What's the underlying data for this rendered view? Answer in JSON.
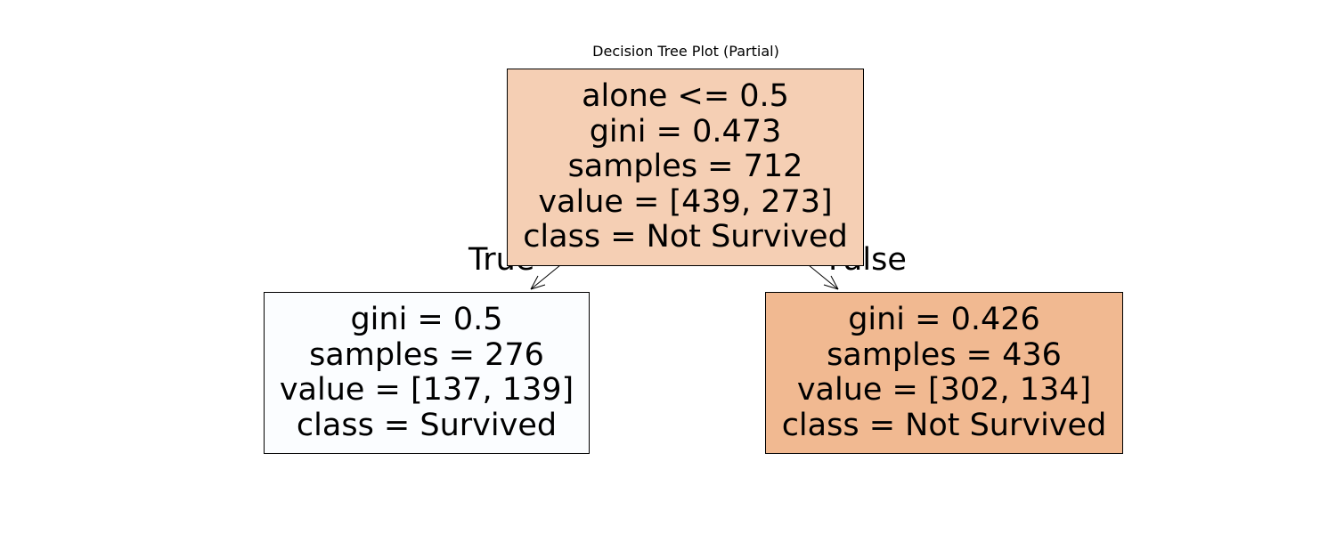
{
  "title": "Decision Tree Plot (Partial)",
  "colors": {
    "background": "#ffffff",
    "text": "#000000",
    "border": "#000000",
    "root_fill": "#f5cfb4",
    "left_fill": "#fbfdff",
    "right_fill": "#f1b991"
  },
  "nodes": {
    "root": {
      "split": "alone <= 0.5",
      "gini": "gini = 0.473",
      "samples": "samples = 712",
      "value": "value = [439, 273]",
      "class": "class = Not Survived"
    },
    "left": {
      "gini": "gini = 0.5",
      "samples": "samples = 276",
      "value": "value = [137, 139]",
      "class": "class = Survived"
    },
    "right": {
      "gini": "gini = 0.426",
      "samples": "samples = 436",
      "value": "value = [302, 134]",
      "class": "class = Not Survived"
    }
  },
  "edges": {
    "true_label": "True",
    "false_label": "False"
  }
}
